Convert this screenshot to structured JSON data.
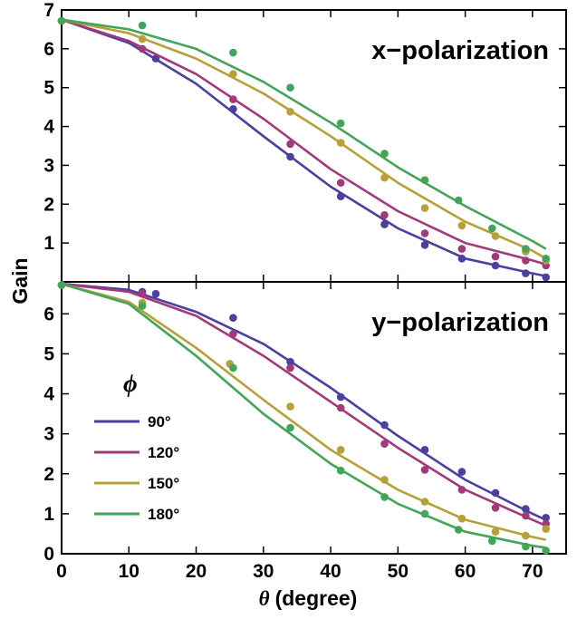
{
  "chart_data": {
    "type": "line",
    "xlabel_symbol": "θ",
    "xlabel_text": "(degree)",
    "ylabel": "Gain",
    "xlim": [
      0,
      75
    ],
    "xticks": [
      0,
      10,
      20,
      30,
      40,
      50,
      60,
      70
    ],
    "legend_title": "ϕ",
    "legend_position": "left",
    "panels": [
      {
        "title": "x−polarization",
        "ylim": [
          0,
          7
        ],
        "yticks": [
          1,
          2,
          3,
          4,
          5,
          6,
          7
        ],
        "series": [
          {
            "name": "90°",
            "color": "#4b3fa0",
            "line_x": [
              0,
              10,
              20,
              30,
              40,
              50,
              60,
              70,
              72
            ],
            "line_y": [
              6.75,
              6.15,
              5.1,
              3.75,
              2.45,
              1.38,
              0.6,
              0.22,
              0.15
            ],
            "points_x": [
              0,
              14,
              25.5,
              34,
              41.5,
              48,
              54,
              59.5,
              64.5,
              69,
              72
            ],
            "points_y": [
              6.72,
              5.75,
              4.45,
              3.22,
              2.2,
              1.48,
              0.95,
              0.6,
              0.42,
              0.22,
              0.12
            ]
          },
          {
            "name": "120°",
            "color": "#a23a7a",
            "line_x": [
              0,
              10,
              20,
              30,
              40,
              50,
              60,
              70,
              72
            ],
            "line_y": [
              6.75,
              6.2,
              5.35,
              4.2,
              2.9,
              1.82,
              1.0,
              0.55,
              0.45
            ],
            "points_x": [
              0,
              12,
              25.5,
              34,
              41.5,
              48,
              54,
              59.5,
              64.5,
              69,
              72
            ],
            "points_y": [
              6.72,
              6.0,
              4.7,
              3.55,
              2.55,
              1.72,
              1.25,
              0.85,
              0.65,
              0.55,
              0.42
            ]
          },
          {
            "name": "150°",
            "color": "#b5a03a",
            "line_x": [
              0,
              10,
              20,
              30,
              40,
              50,
              60,
              70,
              72
            ],
            "line_y": [
              6.75,
              6.4,
              5.75,
              4.85,
              3.75,
              2.55,
              1.55,
              0.8,
              0.6
            ],
            "points_x": [
              0,
              12,
              25.5,
              34,
              41.5,
              48,
              54,
              59.5,
              64.5,
              69,
              72
            ],
            "points_y": [
              6.72,
              6.25,
              5.35,
              4.38,
              3.58,
              2.68,
              1.9,
              1.45,
              1.18,
              0.78,
              0.55
            ]
          },
          {
            "name": "180°",
            "color": "#43a55a",
            "line_x": [
              0,
              10,
              20,
              30,
              40,
              50,
              60,
              70,
              72
            ],
            "line_y": [
              6.75,
              6.5,
              6.0,
              5.15,
              4.1,
              2.95,
              1.95,
              1.05,
              0.85
            ],
            "points_x": [
              0,
              12,
              25.5,
              34,
              41.5,
              48,
              54,
              59,
              64,
              69,
              72
            ],
            "points_y": [
              6.72,
              6.6,
              5.9,
              5.0,
              4.08,
              3.3,
              2.62,
              2.1,
              1.38,
              0.85,
              0.6
            ]
          }
        ]
      },
      {
        "title": "y−polarization",
        "ylim": [
          0,
          6.8
        ],
        "yticks": [
          0,
          1,
          2,
          3,
          4,
          5,
          6
        ],
        "series": [
          {
            "name": "90°",
            "color": "#4b3fa0",
            "line_x": [
              0,
              10,
              20,
              30,
              40,
              50,
              60,
              70,
              72
            ],
            "line_y": [
              6.75,
              6.6,
              6.05,
              5.25,
              4.15,
              2.95,
              1.85,
              1.0,
              0.85
            ],
            "points_x": [
              0,
              12,
              14,
              25.5,
              34,
              41.5,
              48,
              54,
              59.5,
              64.5,
              69,
              72
            ],
            "points_y": [
              6.72,
              6.55,
              6.5,
              5.9,
              4.8,
              3.92,
              3.22,
              2.6,
              2.05,
              1.52,
              1.12,
              0.9
            ]
          },
          {
            "name": "120°",
            "color": "#a23a7a",
            "line_x": [
              0,
              10,
              20,
              30,
              40,
              50,
              60,
              70,
              72
            ],
            "line_y": [
              6.75,
              6.55,
              5.95,
              4.95,
              3.8,
              2.65,
              1.6,
              0.85,
              0.7
            ],
            "points_x": [
              0,
              12,
              25.5,
              34,
              41.5,
              48,
              54,
              59.5,
              64.5,
              69,
              72
            ],
            "points_y": [
              6.72,
              6.5,
              5.5,
              4.65,
              3.65,
              2.75,
              2.1,
              1.6,
              1.15,
              0.95,
              0.75
            ]
          },
          {
            "name": "150°",
            "color": "#b5a03a",
            "line_x": [
              0,
              10,
              20,
              30,
              40,
              50,
              60,
              70,
              72
            ],
            "line_y": [
              6.75,
              6.3,
              5.15,
              3.85,
              2.6,
              1.6,
              0.85,
              0.42,
              0.35
            ],
            "points_x": [
              0,
              12,
              25,
              34,
              41.5,
              48,
              54,
              59.5,
              64.5,
              69,
              72
            ],
            "points_y": [
              6.72,
              6.28,
              4.75,
              3.68,
              2.6,
              1.85,
              1.3,
              0.88,
              0.55,
              0.45,
              0.62
            ]
          },
          {
            "name": "180°",
            "color": "#43a55a",
            "line_x": [
              0,
              10,
              20,
              30,
              40,
              50,
              60,
              70,
              72
            ],
            "line_y": [
              6.75,
              6.25,
              4.95,
              3.5,
              2.25,
              1.25,
              0.55,
              0.2,
              0.15
            ],
            "points_x": [
              0,
              12,
              25.5,
              34,
              41.5,
              48,
              54,
              59,
              64,
              69,
              72
            ],
            "points_y": [
              6.72,
              6.2,
              4.65,
              3.15,
              2.08,
              1.42,
              1.0,
              0.6,
              0.32,
              0.18,
              0.08
            ]
          }
        ]
      }
    ]
  }
}
